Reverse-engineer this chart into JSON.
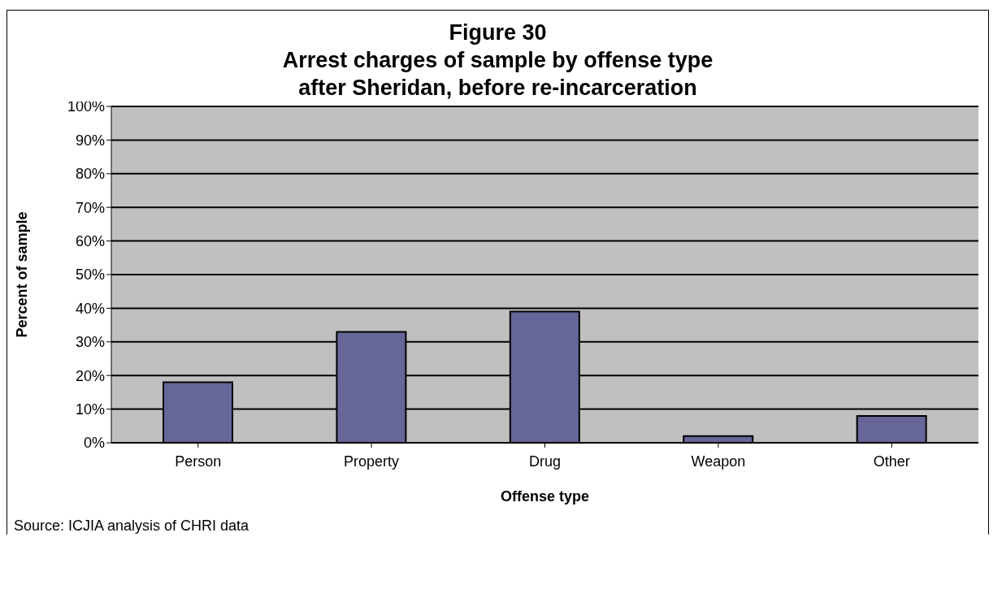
{
  "chart_data": {
    "type": "bar",
    "title": "Figure 30\nArrest charges of sample by offense type\nafter Sheridan, before re-incarceration",
    "xlabel": "Offense type",
    "ylabel": "Percent of sample",
    "categories": [
      "Person",
      "Property",
      "Drug",
      "Weapon",
      "Other"
    ],
    "values": [
      18,
      33,
      39,
      2,
      8
    ],
    "color": "#666699",
    "ylim": [
      0,
      100
    ],
    "yticks": [
      {
        "value": 0,
        "label": "0%"
      },
      {
        "value": 10,
        "label": "10%"
      },
      {
        "value": 20,
        "label": "20%"
      },
      {
        "value": 30,
        "label": "30%"
      },
      {
        "value": 40,
        "label": "40%"
      },
      {
        "value": 50,
        "label": "50%"
      },
      {
        "value": 60,
        "label": "60%"
      },
      {
        "value": 70,
        "label": "70%"
      },
      {
        "value": 80,
        "label": "80%"
      },
      {
        "value": 90,
        "label": "90%"
      },
      {
        "value": 100,
        "label": "100%"
      }
    ],
    "grid": "y",
    "annotations": [
      "Source: ICJIA analysis of CHRI data"
    ]
  }
}
